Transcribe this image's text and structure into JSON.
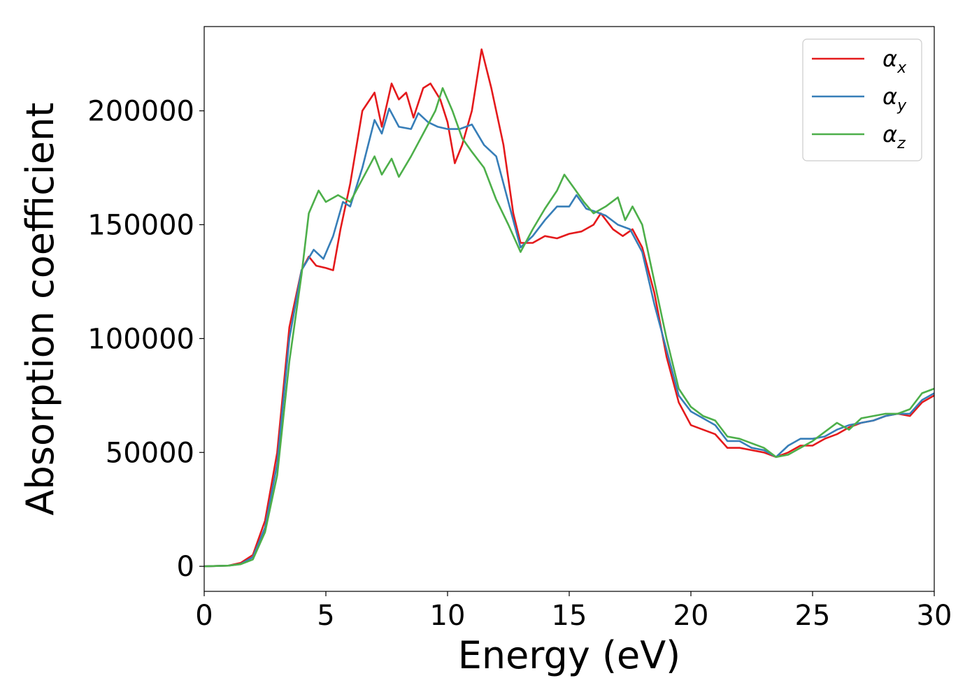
{
  "chart_data": {
    "type": "line",
    "xlabel": "Energy (eV)",
    "ylabel": "Absorption coefficient",
    "xlim": [
      0,
      30
    ],
    "ylim": [
      -11000,
      237000
    ],
    "xticks": [
      "0",
      "5",
      "10",
      "15",
      "20",
      "25",
      "30"
    ],
    "yticks": [
      "0",
      "50000",
      "100000",
      "150000",
      "200000"
    ],
    "grid": false,
    "legend_position": "top-right",
    "series": [
      {
        "name": "α",
        "subscript": "x",
        "color": "#e41a1c",
        "points": [
          [
            0,
            0
          ],
          [
            1,
            300
          ],
          [
            1.5,
            1500
          ],
          [
            2,
            5000
          ],
          [
            2.5,
            20000
          ],
          [
            3,
            50000
          ],
          [
            3.5,
            105000
          ],
          [
            4,
            130000
          ],
          [
            4.3,
            136000
          ],
          [
            4.6,
            132000
          ],
          [
            5,
            131000
          ],
          [
            5.3,
            130000
          ],
          [
            5.6,
            148000
          ],
          [
            6,
            168000
          ],
          [
            6.5,
            200000
          ],
          [
            7,
            208000
          ],
          [
            7.3,
            193000
          ],
          [
            7.7,
            212000
          ],
          [
            8,
            205000
          ],
          [
            8.3,
            208000
          ],
          [
            8.6,
            197000
          ],
          [
            9,
            210000
          ],
          [
            9.3,
            212000
          ],
          [
            9.7,
            205000
          ],
          [
            10,
            195000
          ],
          [
            10.3,
            177000
          ],
          [
            10.6,
            185000
          ],
          [
            11,
            200000
          ],
          [
            11.4,
            227000
          ],
          [
            11.8,
            210000
          ],
          [
            12.3,
            185000
          ],
          [
            12.7,
            155000
          ],
          [
            13,
            142000
          ],
          [
            13.5,
            142000
          ],
          [
            14,
            145000
          ],
          [
            14.5,
            144000
          ],
          [
            15,
            146000
          ],
          [
            15.5,
            147000
          ],
          [
            16,
            150000
          ],
          [
            16.3,
            155000
          ],
          [
            16.8,
            148000
          ],
          [
            17.2,
            145000
          ],
          [
            17.6,
            148000
          ],
          [
            18,
            140000
          ],
          [
            18.5,
            120000
          ],
          [
            19,
            92000
          ],
          [
            19.5,
            72000
          ],
          [
            20,
            62000
          ],
          [
            20.5,
            60000
          ],
          [
            21,
            58000
          ],
          [
            21.5,
            52000
          ],
          [
            22,
            52000
          ],
          [
            22.5,
            51000
          ],
          [
            23,
            50000
          ],
          [
            23.5,
            48000
          ],
          [
            24,
            50000
          ],
          [
            24.5,
            53000
          ],
          [
            25,
            53000
          ],
          [
            25.5,
            56000
          ],
          [
            26,
            58000
          ],
          [
            26.5,
            61000
          ],
          [
            27,
            63000
          ],
          [
            27.5,
            64000
          ],
          [
            28,
            66000
          ],
          [
            28.5,
            67000
          ],
          [
            29,
            66000
          ],
          [
            29.5,
            72000
          ],
          [
            30,
            75000
          ]
        ]
      },
      {
        "name": "α",
        "subscript": "y",
        "color": "#377eb8",
        "points": [
          [
            0,
            0
          ],
          [
            1,
            300
          ],
          [
            1.5,
            1000
          ],
          [
            2,
            4000
          ],
          [
            2.5,
            17000
          ],
          [
            3,
            45000
          ],
          [
            3.5,
            100000
          ],
          [
            4,
            130000
          ],
          [
            4.5,
            139000
          ],
          [
            4.9,
            135000
          ],
          [
            5.3,
            145000
          ],
          [
            5.7,
            160000
          ],
          [
            6,
            158000
          ],
          [
            6.5,
            175000
          ],
          [
            7,
            196000
          ],
          [
            7.3,
            190000
          ],
          [
            7.6,
            201000
          ],
          [
            8,
            193000
          ],
          [
            8.5,
            192000
          ],
          [
            8.8,
            199000
          ],
          [
            9.2,
            195000
          ],
          [
            9.6,
            193000
          ],
          [
            10,
            192000
          ],
          [
            10.5,
            192000
          ],
          [
            11,
            194000
          ],
          [
            11.5,
            185000
          ],
          [
            12,
            180000
          ],
          [
            12.5,
            160000
          ],
          [
            13,
            140000
          ],
          [
            13.5,
            145000
          ],
          [
            14,
            152000
          ],
          [
            14.5,
            158000
          ],
          [
            15,
            158000
          ],
          [
            15.3,
            163000
          ],
          [
            15.7,
            157000
          ],
          [
            16,
            156000
          ],
          [
            16.5,
            154000
          ],
          [
            17,
            150000
          ],
          [
            17.5,
            148000
          ],
          [
            18,
            138000
          ],
          [
            18.5,
            115000
          ],
          [
            19,
            95000
          ],
          [
            19.5,
            75000
          ],
          [
            20,
            68000
          ],
          [
            20.5,
            65000
          ],
          [
            21,
            62000
          ],
          [
            21.5,
            55000
          ],
          [
            22,
            55000
          ],
          [
            22.5,
            52000
          ],
          [
            23,
            51000
          ],
          [
            23.5,
            48000
          ],
          [
            24,
            53000
          ],
          [
            24.5,
            56000
          ],
          [
            25,
            56000
          ],
          [
            25.5,
            57000
          ],
          [
            26,
            60000
          ],
          [
            26.5,
            62000
          ],
          [
            27,
            63000
          ],
          [
            27.5,
            64000
          ],
          [
            28,
            66000
          ],
          [
            28.5,
            67000
          ],
          [
            29,
            67000
          ],
          [
            29.5,
            73000
          ],
          [
            30,
            76000
          ]
        ]
      },
      {
        "name": "α",
        "subscript": "z",
        "color": "#4daf4a",
        "points": [
          [
            0,
            0
          ],
          [
            1,
            300
          ],
          [
            1.5,
            900
          ],
          [
            2,
            3000
          ],
          [
            2.5,
            15000
          ],
          [
            3,
            40000
          ],
          [
            3.5,
            90000
          ],
          [
            4,
            128000
          ],
          [
            4.3,
            155000
          ],
          [
            4.7,
            165000
          ],
          [
            5,
            160000
          ],
          [
            5.5,
            163000
          ],
          [
            6,
            160000
          ],
          [
            6.5,
            170000
          ],
          [
            7,
            180000
          ],
          [
            7.3,
            172000
          ],
          [
            7.7,
            179000
          ],
          [
            8,
            171000
          ],
          [
            8.5,
            180000
          ],
          [
            9,
            190000
          ],
          [
            9.5,
            200000
          ],
          [
            9.8,
            210000
          ],
          [
            10.2,
            200000
          ],
          [
            10.6,
            188000
          ],
          [
            11,
            182000
          ],
          [
            11.5,
            175000
          ],
          [
            12,
            161000
          ],
          [
            12.5,
            150000
          ],
          [
            13,
            138000
          ],
          [
            13.5,
            148000
          ],
          [
            14,
            157000
          ],
          [
            14.5,
            165000
          ],
          [
            14.8,
            172000
          ],
          [
            15.2,
            166000
          ],
          [
            15.6,
            160000
          ],
          [
            16,
            155000
          ],
          [
            16.5,
            158000
          ],
          [
            17,
            162000
          ],
          [
            17.3,
            152000
          ],
          [
            17.6,
            158000
          ],
          [
            18,
            150000
          ],
          [
            18.5,
            125000
          ],
          [
            19,
            100000
          ],
          [
            19.5,
            78000
          ],
          [
            20,
            70000
          ],
          [
            20.5,
            66000
          ],
          [
            21,
            64000
          ],
          [
            21.5,
            57000
          ],
          [
            22,
            56000
          ],
          [
            22.5,
            54000
          ],
          [
            23,
            52000
          ],
          [
            23.5,
            48000
          ],
          [
            24,
            49000
          ],
          [
            24.5,
            52000
          ],
          [
            25,
            55000
          ],
          [
            25.5,
            59000
          ],
          [
            26,
            63000
          ],
          [
            26.5,
            60000
          ],
          [
            27,
            65000
          ],
          [
            27.5,
            66000
          ],
          [
            28,
            67000
          ],
          [
            28.5,
            67000
          ],
          [
            29,
            69000
          ],
          [
            29.5,
            76000
          ],
          [
            30,
            78000
          ]
        ]
      }
    ]
  }
}
